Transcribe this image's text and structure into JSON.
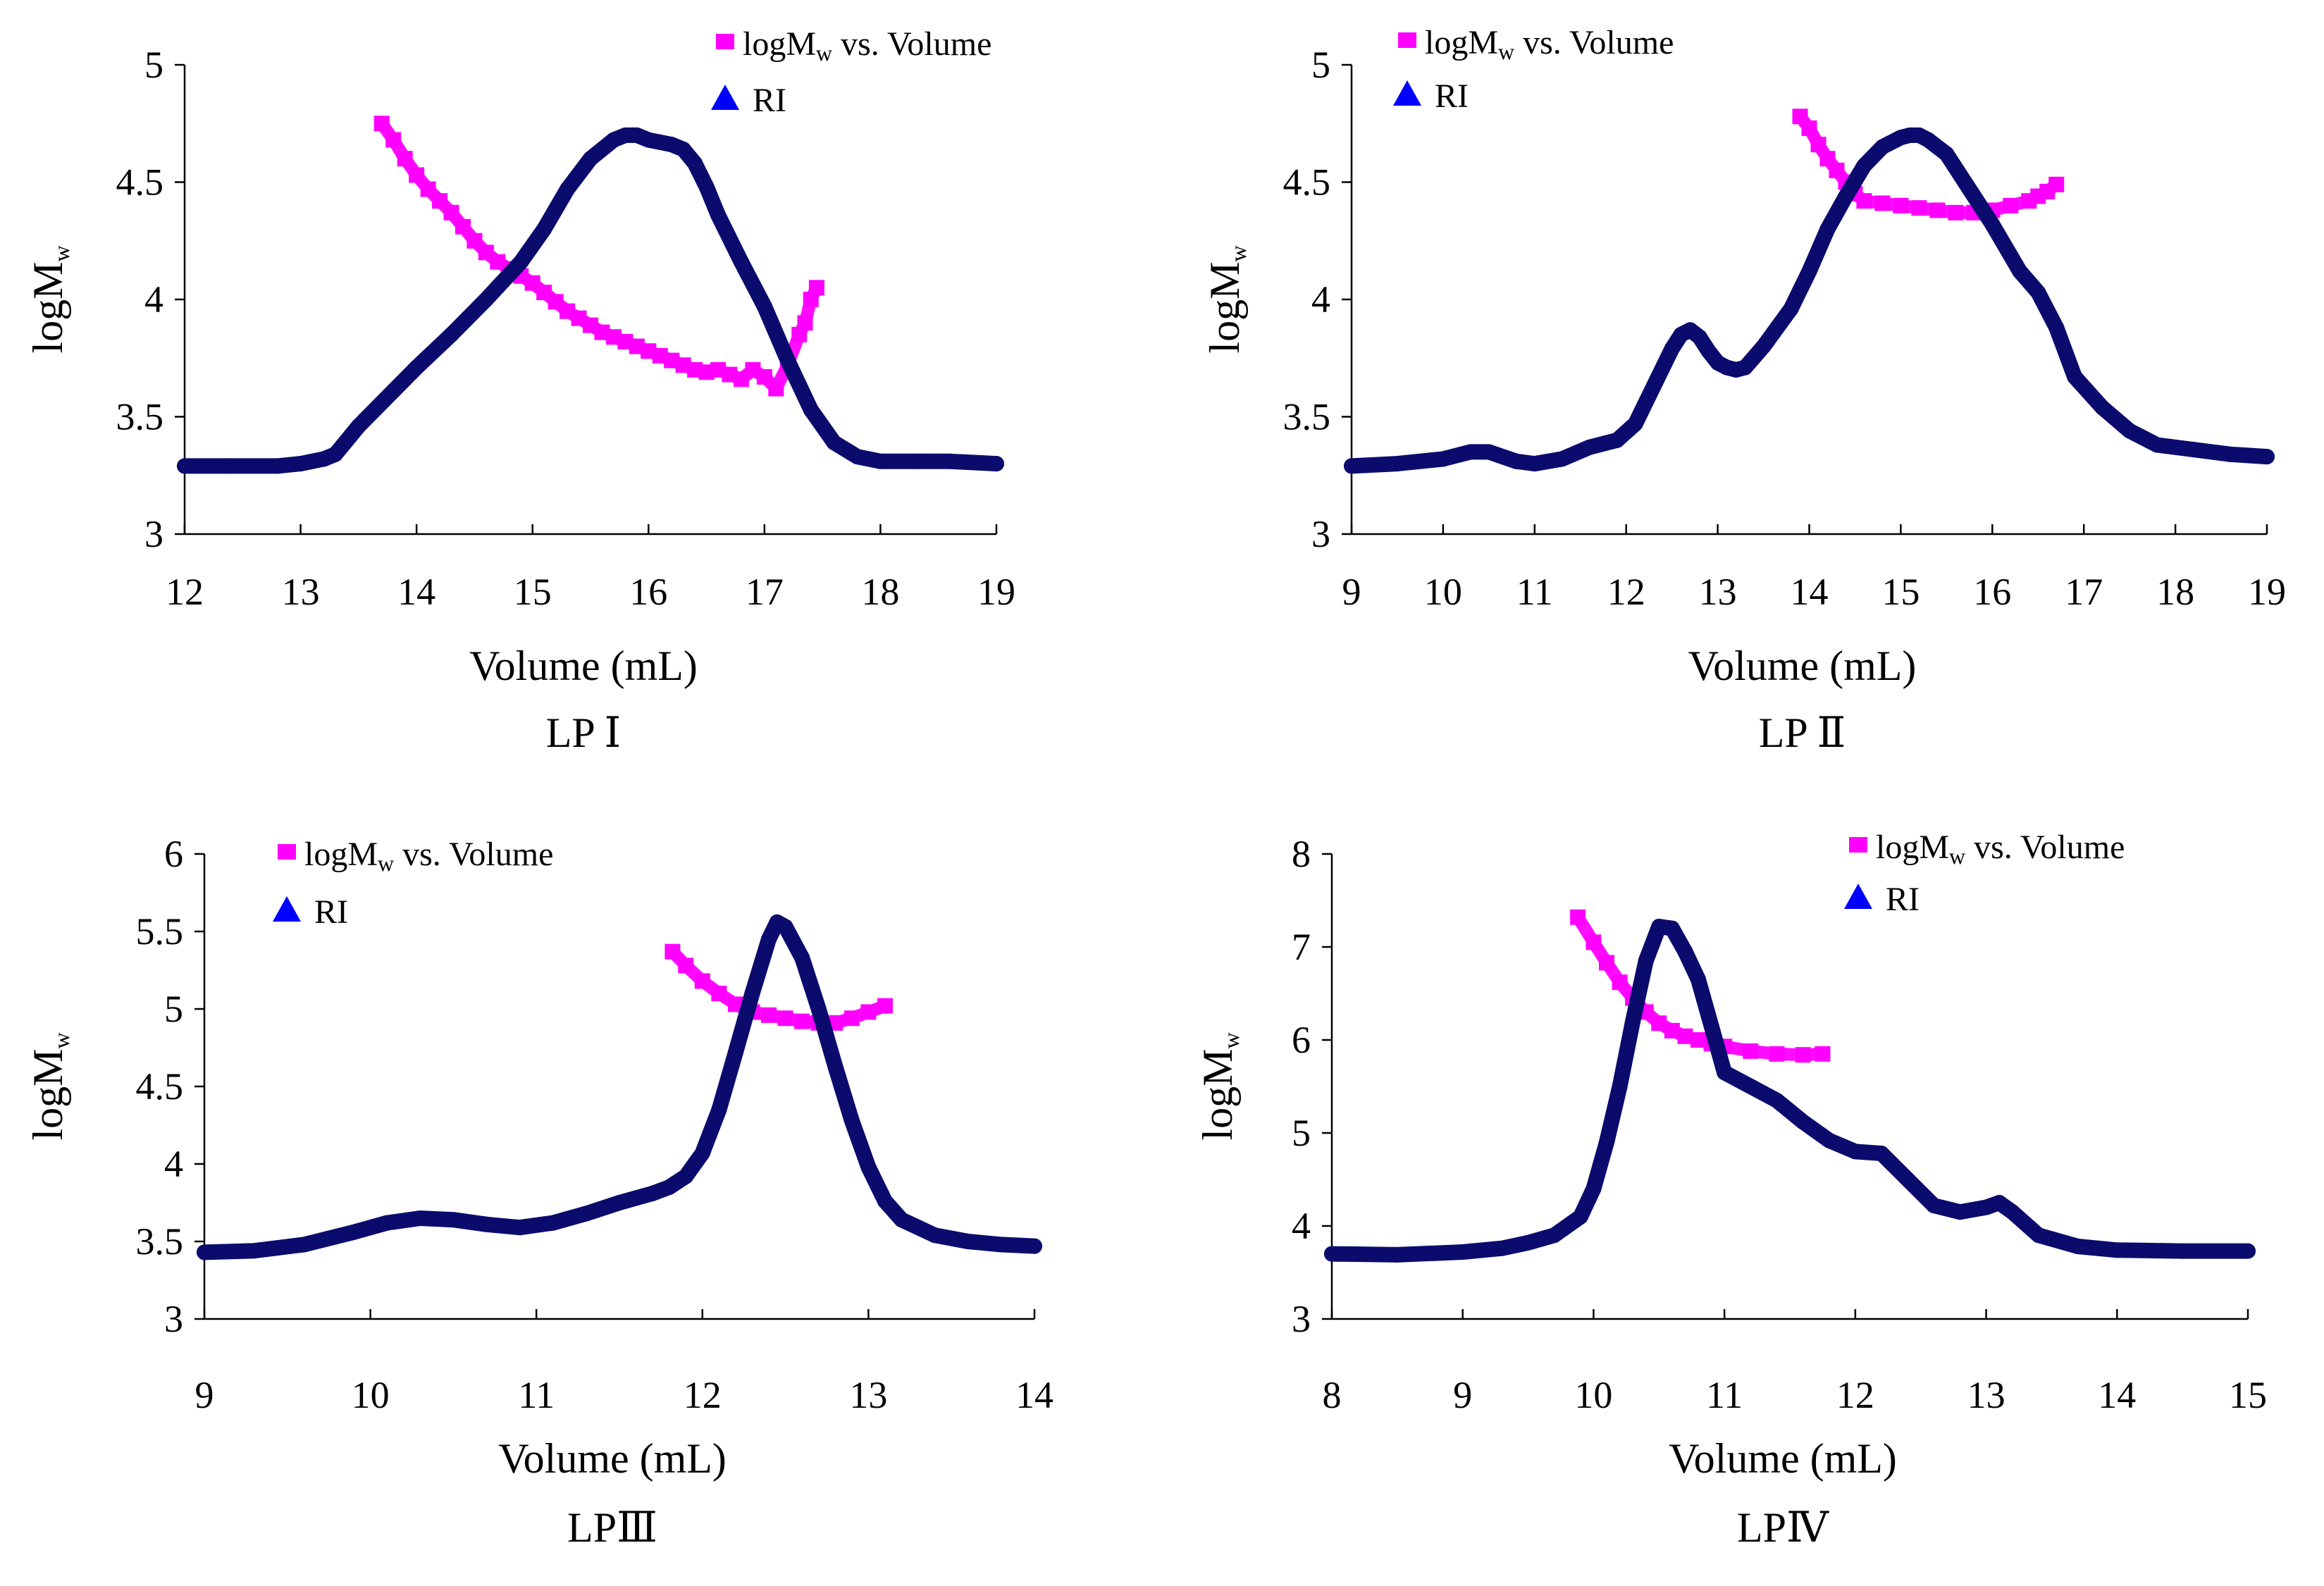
{
  "chart_data": [
    {
      "type": "scatter",
      "caption": "LP Ⅰ",
      "xlabel": "Volume (mL)",
      "ylabel": "logM",
      "ylabel_sub": "w",
      "xlim": [
        12,
        19
      ],
      "ylim": [
        3,
        5
      ],
      "xticks": [
        "12",
        "13",
        "14",
        "15",
        "16",
        "17",
        "18",
        "19"
      ],
      "yticks": [
        "3",
        "3.5",
        "4",
        "4.5",
        "5"
      ],
      "legend": [
        {
          "label": "logM",
          "sub": "w",
          "suffix": " vs. Volume",
          "color": "#FF00FF",
          "marker": "square"
        },
        {
          "label": "RI",
          "color": "#0000FF",
          "marker": "triangle"
        }
      ],
      "series": [
        {
          "name": "logMw vs. Volume",
          "color": "#FF00FF",
          "x": [
            13.7,
            13.8,
            13.9,
            14.0,
            14.1,
            14.2,
            14.3,
            14.4,
            14.5,
            14.6,
            14.7,
            14.8,
            14.9,
            15.0,
            15.1,
            15.2,
            15.3,
            15.4,
            15.5,
            15.6,
            15.7,
            15.8,
            15.9,
            16.0,
            16.1,
            16.2,
            16.3,
            16.4,
            16.5,
            16.6,
            16.7,
            16.8,
            16.9,
            17.0,
            17.1,
            17.2,
            17.3,
            17.35,
            17.4,
            17.45
          ],
          "y": [
            4.75,
            4.68,
            4.6,
            4.53,
            4.47,
            4.42,
            4.37,
            4.31,
            4.25,
            4.2,
            4.16,
            4.13,
            4.1,
            4.07,
            4.03,
            3.99,
            3.95,
            3.92,
            3.89,
            3.86,
            3.84,
            3.82,
            3.8,
            3.78,
            3.76,
            3.74,
            3.72,
            3.7,
            3.69,
            3.7,
            3.68,
            3.66,
            3.7,
            3.67,
            3.62,
            3.72,
            3.85,
            3.9,
            4.0,
            4.05
          ]
        },
        {
          "name": "RI",
          "color": "#0B0B6E",
          "x": [
            12.0,
            12.4,
            12.8,
            13.0,
            13.2,
            13.3,
            13.5,
            13.8,
            14.0,
            14.3,
            14.6,
            14.9,
            15.1,
            15.3,
            15.5,
            15.7,
            15.8,
            15.9,
            16.0,
            16.1,
            16.2,
            16.3,
            16.4,
            16.5,
            16.6,
            16.8,
            17.0,
            17.2,
            17.4,
            17.6,
            17.8,
            18.0,
            18.3,
            18.6,
            19.0
          ],
          "y": [
            3.29,
            3.29,
            3.29,
            3.3,
            3.32,
            3.34,
            3.46,
            3.61,
            3.71,
            3.85,
            4.0,
            4.16,
            4.3,
            4.47,
            4.6,
            4.68,
            4.7,
            4.7,
            4.68,
            4.67,
            4.66,
            4.64,
            4.58,
            4.48,
            4.36,
            4.16,
            3.97,
            3.74,
            3.53,
            3.39,
            3.33,
            3.31,
            3.31,
            3.31,
            3.3
          ]
        }
      ]
    },
    {
      "type": "scatter",
      "caption": "LP Ⅱ",
      "xlabel": "Volume (mL)",
      "ylabel": "logM",
      "ylabel_sub": "w",
      "xlim": [
        9,
        19
      ],
      "ylim": [
        3,
        5
      ],
      "xticks": [
        "9",
        "10",
        "11",
        "12",
        "13",
        "14",
        "15",
        "16",
        "17",
        "18",
        "19"
      ],
      "yticks": [
        "3",
        "3.5",
        "4",
        "4.5",
        "5"
      ],
      "legend": [
        {
          "label": "logM",
          "sub": "w",
          "suffix": " vs. Volume",
          "color": "#FF00FF",
          "marker": "square"
        },
        {
          "label": "RI",
          "color": "#0000FF",
          "marker": "triangle"
        }
      ],
      "series": [
        {
          "name": "logMw vs. Volume",
          "color": "#FF00FF",
          "x": [
            13.9,
            14.0,
            14.1,
            14.2,
            14.3,
            14.4,
            14.5,
            14.6,
            14.8,
            15.0,
            15.2,
            15.4,
            15.6,
            15.8,
            16.0,
            16.2,
            16.4,
            16.5,
            16.6,
            16.7
          ],
          "y": [
            4.78,
            4.73,
            4.66,
            4.6,
            4.55,
            4.5,
            4.45,
            4.42,
            4.41,
            4.4,
            4.39,
            4.38,
            4.37,
            4.37,
            4.38,
            4.4,
            4.42,
            4.44,
            4.46,
            4.49
          ]
        },
        {
          "name": "RI",
          "color": "#0B0B6E",
          "x": [
            9.0,
            9.5,
            10.0,
            10.3,
            10.5,
            10.8,
            11.0,
            11.3,
            11.6,
            11.9,
            12.1,
            12.3,
            12.5,
            12.6,
            12.7,
            12.8,
            12.9,
            13.0,
            13.1,
            13.2,
            13.3,
            13.5,
            13.8,
            14.0,
            14.2,
            14.4,
            14.6,
            14.8,
            15.0,
            15.1,
            15.2,
            15.3,
            15.5,
            15.7,
            16.0,
            16.3,
            16.5,
            16.7,
            16.9,
            17.2,
            17.5,
            17.8,
            18.2,
            18.6,
            19.0
          ],
          "y": [
            3.29,
            3.3,
            3.32,
            3.35,
            3.35,
            3.31,
            3.3,
            3.32,
            3.37,
            3.4,
            3.47,
            3.63,
            3.79,
            3.85,
            3.87,
            3.84,
            3.78,
            3.73,
            3.71,
            3.7,
            3.71,
            3.8,
            3.96,
            4.12,
            4.3,
            4.44,
            4.57,
            4.65,
            4.69,
            4.7,
            4.7,
            4.68,
            4.62,
            4.5,
            4.32,
            4.12,
            4.03,
            3.88,
            3.67,
            3.54,
            3.44,
            3.38,
            3.36,
            3.34,
            3.33
          ]
        }
      ]
    },
    {
      "type": "scatter",
      "caption": "LPⅢ",
      "xlabel": "Volume (mL)",
      "ylabel": "logM",
      "ylabel_sub": "w",
      "xlim": [
        9,
        14
      ],
      "ylim": [
        3,
        6
      ],
      "xticks": [
        "9",
        "10",
        "11",
        "12",
        "13",
        "14"
      ],
      "yticks": [
        "3",
        "3.5",
        "4",
        "4.5",
        "5",
        "5.5",
        "6"
      ],
      "legend": [
        {
          "label": "logM",
          "sub": "w",
          "suffix": " vs. Volume",
          "color": "#FF00FF",
          "marker": "square"
        },
        {
          "label": "RI",
          "color": "#0000FF",
          "marker": "triangle"
        }
      ],
      "series": [
        {
          "name": "logMw vs. Volume",
          "color": "#FF00FF",
          "x": [
            11.82,
            11.9,
            12.0,
            12.1,
            12.2,
            12.3,
            12.4,
            12.5,
            12.6,
            12.7,
            12.8,
            12.9,
            13.0,
            13.1
          ],
          "y": [
            5.37,
            5.28,
            5.18,
            5.1,
            5.03,
            4.98,
            4.96,
            4.94,
            4.92,
            4.91,
            4.91,
            4.94,
            4.98,
            5.02
          ]
        },
        {
          "name": "RI",
          "color": "#0B0B6E",
          "x": [
            9.0,
            9.3,
            9.6,
            9.9,
            10.1,
            10.3,
            10.5,
            10.7,
            10.9,
            11.1,
            11.3,
            11.5,
            11.7,
            11.8,
            11.9,
            12.0,
            12.1,
            12.2,
            12.3,
            12.4,
            12.45,
            12.5,
            12.6,
            12.7,
            12.8,
            12.9,
            13.0,
            13.1,
            13.2,
            13.4,
            13.6,
            13.8,
            14.0
          ],
          "y": [
            3.43,
            3.44,
            3.48,
            3.56,
            3.62,
            3.65,
            3.64,
            3.61,
            3.59,
            3.62,
            3.68,
            3.75,
            3.81,
            3.85,
            3.92,
            4.07,
            4.35,
            4.72,
            5.1,
            5.45,
            5.56,
            5.53,
            5.33,
            5.0,
            4.63,
            4.28,
            3.98,
            3.76,
            3.64,
            3.54,
            3.5,
            3.48,
            3.47
          ]
        }
      ]
    },
    {
      "type": "scatter",
      "caption": "LPⅣ",
      "xlabel": "Volume (mL)",
      "ylabel": "logM",
      "ylabel_sub": "w",
      "xlim": [
        8,
        15
      ],
      "ylim": [
        3,
        8
      ],
      "xticks": [
        "8",
        "9",
        "10",
        "11",
        "12",
        "13",
        "14",
        "15"
      ],
      "yticks": [
        "3",
        "4",
        "5",
        "6",
        "7",
        "8"
      ],
      "legend": [
        {
          "label": "logM",
          "sub": "w",
          "suffix": " vs. Volume",
          "color": "#FF00FF",
          "marker": "square"
        },
        {
          "label": "RI",
          "color": "#0000FF",
          "marker": "triangle"
        }
      ],
      "series": [
        {
          "name": "logMw vs. Volume",
          "color": "#FF00FF",
          "x": [
            9.88,
            10.0,
            10.1,
            10.2,
            10.3,
            10.4,
            10.5,
            10.6,
            10.7,
            10.8,
            10.9,
            11.0,
            11.2,
            11.4,
            11.6,
            11.75
          ],
          "y": [
            7.32,
            7.05,
            6.83,
            6.62,
            6.45,
            6.3,
            6.18,
            6.1,
            6.04,
            6.0,
            5.96,
            5.93,
            5.88,
            5.85,
            5.84,
            5.85
          ]
        },
        {
          "name": "RI",
          "color": "#0B0B6E",
          "x": [
            8.0,
            8.5,
            9.0,
            9.3,
            9.5,
            9.7,
            9.9,
            10.0,
            10.1,
            10.2,
            10.3,
            10.4,
            10.5,
            10.6,
            10.7,
            10.8,
            10.9,
            11.0,
            11.2,
            11.4,
            11.6,
            11.8,
            12.0,
            12.2,
            12.4,
            12.6,
            12.8,
            13.0,
            13.1,
            13.2,
            13.4,
            13.7,
            14.0,
            14.5,
            15.0
          ],
          "y": [
            3.7,
            3.69,
            3.72,
            3.76,
            3.82,
            3.9,
            4.1,
            4.4,
            4.9,
            5.5,
            6.2,
            6.85,
            7.22,
            7.2,
            6.95,
            6.65,
            6.15,
            5.65,
            5.5,
            5.35,
            5.12,
            4.92,
            4.8,
            4.78,
            4.5,
            4.22,
            4.15,
            4.2,
            4.25,
            4.15,
            3.9,
            3.78,
            3.74,
            3.73,
            3.73
          ]
        }
      ]
    }
  ]
}
